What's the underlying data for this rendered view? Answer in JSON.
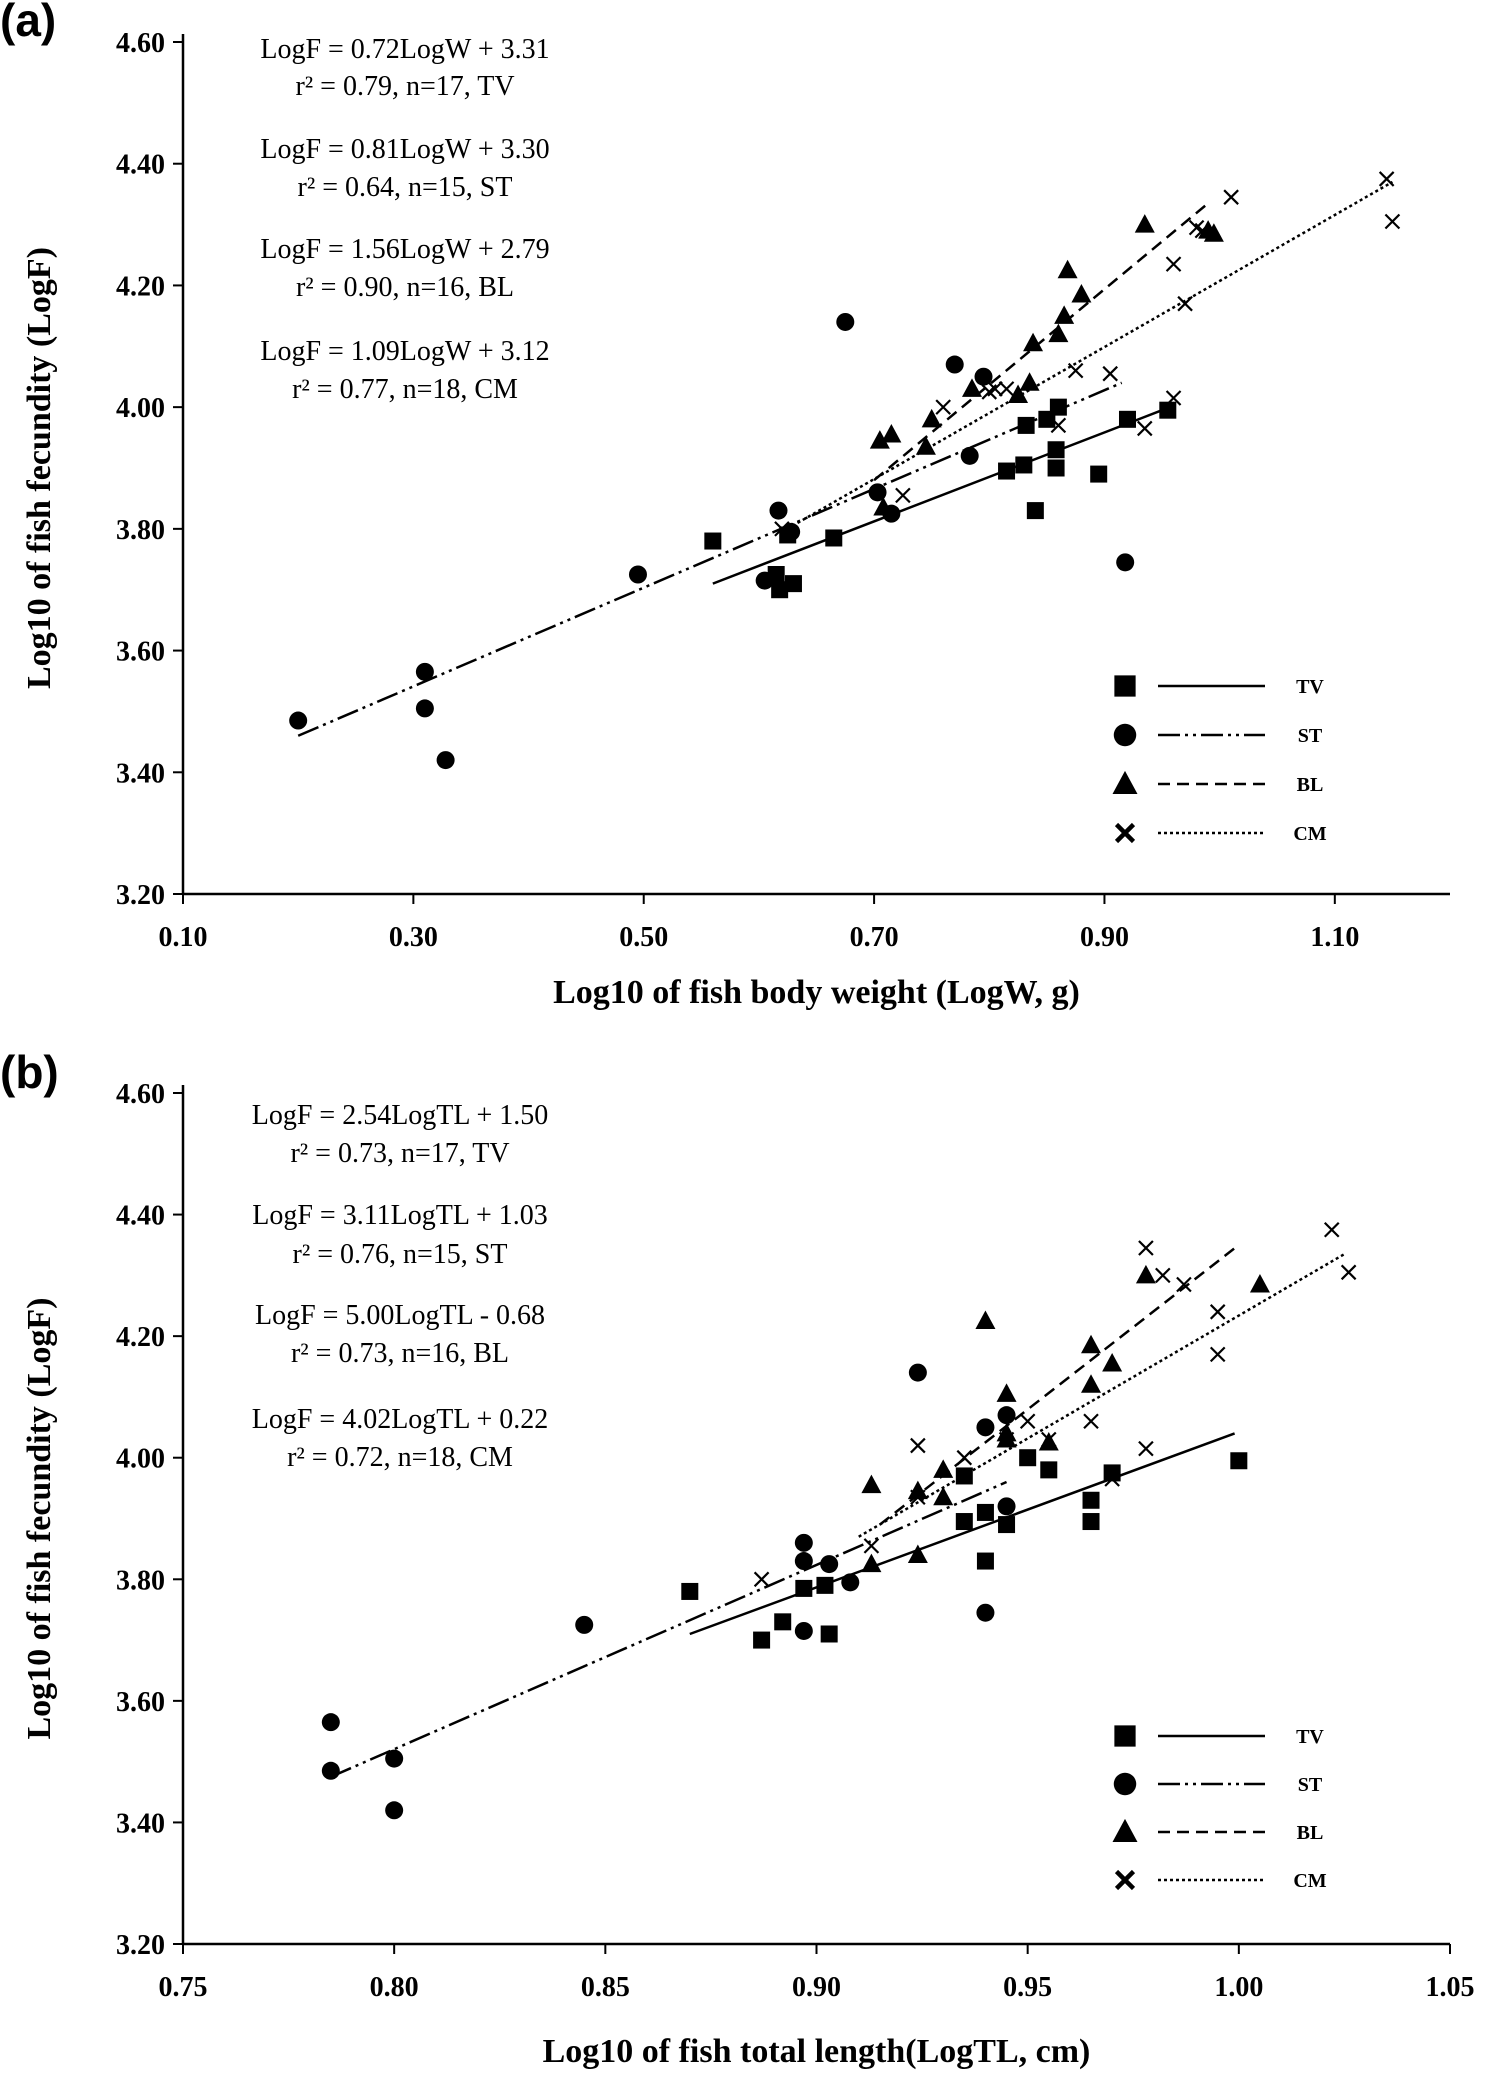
{
  "chart_data": [
    {
      "type": "scatter",
      "panel": "(a)",
      "xlabel": "Log10 of fish body weight (LogW, g)",
      "ylabel": "Log10 of fish fecundity (LogF)",
      "xlim": [
        0.1,
        1.2
      ],
      "ylim": [
        3.2,
        4.6
      ],
      "xticks": [
        "0.10",
        "0.30",
        "0.50",
        "0.70",
        "0.90",
        "1.10"
      ],
      "xtick_values": [
        0.1,
        0.3,
        0.5,
        0.7,
        0.9,
        1.1
      ],
      "yticks": [
        "3.20",
        "3.40",
        "3.60",
        "3.80",
        "4.00",
        "4.20",
        "4.40",
        "4.60"
      ],
      "ytick_values": [
        3.2,
        3.4,
        3.6,
        3.8,
        4.0,
        4.2,
        4.4,
        4.6
      ],
      "grid": false,
      "legend_position": "bottom-right",
      "annotations": [
        {
          "eq": "LogF = 0.72LogW + 3.31",
          "stat": "r² = 0.79, n=17, TV"
        },
        {
          "eq": "LogF = 0.81LogW + 3.30",
          "stat": "r² = 0.64, n=15, ST"
        },
        {
          "eq": "LogF = 1.56LogW + 2.79",
          "stat": "r² = 0.90, n=16, BL"
        },
        {
          "eq": "LogF = 1.09LogW + 3.12",
          "stat": "r² = 0.77, n=18, CM"
        }
      ],
      "series": [
        {
          "name": "TV",
          "marker": "square",
          "line": "solid",
          "fit": [
            [
              0.56,
              3.71
            ],
            [
              0.95,
              3.995
            ]
          ],
          "points": [
            [
              0.56,
              3.78
            ],
            [
              0.615,
              3.725
            ],
            [
              0.618,
              3.7
            ],
            [
              0.625,
              3.79
            ],
            [
              0.63,
              3.71
            ],
            [
              0.665,
              3.785
            ],
            [
              0.815,
              3.895
            ],
            [
              0.83,
              3.905
            ],
            [
              0.832,
              3.97
            ],
            [
              0.84,
              3.83
            ],
            [
              0.85,
              3.98
            ],
            [
              0.858,
              3.93
            ],
            [
              0.858,
              3.9
            ],
            [
              0.86,
              4.0
            ],
            [
              0.895,
              3.89
            ],
            [
              0.92,
              3.98
            ],
            [
              0.955,
              3.995
            ]
          ]
        },
        {
          "name": "ST",
          "marker": "circle",
          "line": "dash-dot-dot",
          "fit": [
            [
              0.2,
              3.46
            ],
            [
              0.915,
              4.04
            ]
          ],
          "points": [
            [
              0.2,
              3.485
            ],
            [
              0.31,
              3.505
            ],
            [
              0.31,
              3.565
            ],
            [
              0.328,
              3.42
            ],
            [
              0.495,
              3.725
            ],
            [
              0.605,
              3.715
            ],
            [
              0.617,
              3.83
            ],
            [
              0.628,
              3.795
            ],
            [
              0.675,
              4.14
            ],
            [
              0.703,
              3.86
            ],
            [
              0.715,
              3.825
            ],
            [
              0.77,
              4.07
            ],
            [
              0.783,
              3.92
            ],
            [
              0.795,
              4.05
            ],
            [
              0.918,
              3.745
            ]
          ]
        },
        {
          "name": "BL",
          "marker": "triangle",
          "line": "dashed",
          "fit": [
            [
              0.7,
              3.88
            ],
            [
              0.99,
              4.335
            ]
          ],
          "points": [
            [
              0.705,
              3.945
            ],
            [
              0.708,
              3.835
            ],
            [
              0.715,
              3.955
            ],
            [
              0.745,
              3.935
            ],
            [
              0.75,
              3.98
            ],
            [
              0.785,
              4.03
            ],
            [
              0.825,
              4.02
            ],
            [
              0.835,
              4.04
            ],
            [
              0.838,
              4.105
            ],
            [
              0.86,
              4.12
            ],
            [
              0.865,
              4.15
            ],
            [
              0.868,
              4.225
            ],
            [
              0.88,
              4.185
            ],
            [
              0.935,
              4.3
            ],
            [
              0.99,
              4.29
            ],
            [
              0.995,
              4.285
            ]
          ]
        },
        {
          "name": "CM",
          "marker": "x",
          "line": "dotted",
          "fit": [
            [
              0.62,
              3.795
            ],
            [
              1.15,
              4.37
            ]
          ],
          "points": [
            [
              0.62,
              3.8
            ],
            [
              0.725,
              3.855
            ],
            [
              0.76,
              4.0
            ],
            [
              0.8,
              4.025
            ],
            [
              0.805,
              4.03
            ],
            [
              0.815,
              4.03
            ],
            [
              0.86,
              3.97
            ],
            [
              0.875,
              4.06
            ],
            [
              0.905,
              4.055
            ],
            [
              0.935,
              3.965
            ],
            [
              0.96,
              4.015
            ],
            [
              0.96,
              4.235
            ],
            [
              0.97,
              4.17
            ],
            [
              0.98,
              4.295
            ],
            [
              0.985,
              4.29
            ],
            [
              1.01,
              4.345
            ],
            [
              1.145,
              4.375
            ],
            [
              1.15,
              4.305
            ]
          ]
        }
      ]
    },
    {
      "type": "scatter",
      "panel": "(b)",
      "xlabel": "Log10 of fish total length(LogTL, cm)",
      "ylabel": "Log10 of fish fecundity (LogF)",
      "xlim": [
        0.75,
        1.05
      ],
      "ylim": [
        3.2,
        4.6
      ],
      "xticks": [
        "0.75",
        "0.80",
        "0.85",
        "0.90",
        "0.95",
        "1.00",
        "1.05"
      ],
      "xtick_values": [
        0.75,
        0.8,
        0.85,
        0.9,
        0.95,
        1.0,
        1.05
      ],
      "yticks": [
        "3.20",
        "3.40",
        "3.60",
        "3.80",
        "4.00",
        "4.20",
        "4.40",
        "4.60"
      ],
      "ytick_values": [
        3.2,
        3.4,
        3.6,
        3.8,
        4.0,
        4.2,
        4.4,
        4.6
      ],
      "grid": false,
      "legend_position": "bottom-right",
      "annotations": [
        {
          "eq": "LogF = 2.54LogTL + 1.50",
          "stat": "r² = 0.73, n=17, TV"
        },
        {
          "eq": "LogF = 3.11LogTL + 1.03",
          "stat": "r² = 0.76, n=15, ST"
        },
        {
          "eq": "LogF = 5.00LogTL - 0.68",
          "stat": "r² = 0.73, n=16, BL"
        },
        {
          "eq": "LogF = 4.02LogTL + 0.22",
          "stat": "r² = 0.72, n=18, CM"
        }
      ],
      "series": [
        {
          "name": "TV",
          "marker": "square",
          "line": "solid",
          "fit": [
            [
              0.87,
              3.71
            ],
            [
              0.999,
              4.04
            ]
          ],
          "points": [
            [
              0.87,
              3.78
            ],
            [
              0.887,
              3.7
            ],
            [
              0.892,
              3.73
            ],
            [
              0.897,
              3.785
            ],
            [
              0.902,
              3.79
            ],
            [
              0.903,
              3.71
            ],
            [
              0.935,
              3.895
            ],
            [
              0.935,
              3.97
            ],
            [
              0.94,
              3.83
            ],
            [
              0.94,
              3.91
            ],
            [
              0.945,
              3.89
            ],
            [
              0.95,
              4.0
            ],
            [
              0.955,
              3.98
            ],
            [
              0.965,
              3.93
            ],
            [
              0.965,
              3.895
            ],
            [
              0.97,
              3.975
            ],
            [
              1.0,
              3.995
            ]
          ]
        },
        {
          "name": "ST",
          "marker": "circle",
          "line": "dash-dot-dot",
          "fit": [
            [
              0.785,
              3.475
            ],
            [
              0.945,
              3.96
            ]
          ],
          "points": [
            [
              0.785,
              3.565
            ],
            [
              0.785,
              3.485
            ],
            [
              0.8,
              3.505
            ],
            [
              0.8,
              3.42
            ],
            [
              0.845,
              3.725
            ],
            [
              0.897,
              3.86
            ],
            [
              0.897,
              3.83
            ],
            [
              0.897,
              3.715
            ],
            [
              0.903,
              3.825
            ],
            [
              0.908,
              3.795
            ],
            [
              0.924,
              4.14
            ],
            [
              0.94,
              4.05
            ],
            [
              0.94,
              3.745
            ],
            [
              0.945,
              4.07
            ],
            [
              0.945,
              3.92
            ]
          ]
        },
        {
          "name": "BL",
          "marker": "triangle",
          "line": "dashed",
          "fit": [
            [
              0.915,
              3.89
            ],
            [
              1.0,
              4.35
            ]
          ],
          "points": [
            [
              0.913,
              3.955
            ],
            [
              0.913,
              3.825
            ],
            [
              0.924,
              3.945
            ],
            [
              0.924,
              3.84
            ],
            [
              0.93,
              3.98
            ],
            [
              0.93,
              3.935
            ],
            [
              0.94,
              4.225
            ],
            [
              0.945,
              4.105
            ],
            [
              0.945,
              4.04
            ],
            [
              0.955,
              4.025
            ],
            [
              0.965,
              4.185
            ],
            [
              0.965,
              4.12
            ],
            [
              0.97,
              4.155
            ],
            [
              0.978,
              4.3
            ],
            [
              1.005,
              4.285
            ],
            [
              0.945,
              4.03
            ]
          ]
        },
        {
          "name": "CM",
          "marker": "x",
          "line": "dotted",
          "fit": [
            [
              0.91,
              3.87
            ],
            [
              1.025,
              4.335
            ]
          ],
          "points": [
            [
              0.887,
              3.8
            ],
            [
              0.913,
              3.855
            ],
            [
              0.924,
              4.02
            ],
            [
              0.924,
              3.935
            ],
            [
              0.935,
              4.0
            ],
            [
              0.945,
              4.03
            ],
            [
              0.95,
              4.06
            ],
            [
              0.955,
              4.03
            ],
            [
              0.965,
              4.06
            ],
            [
              0.97,
              3.965
            ],
            [
              0.978,
              4.345
            ],
            [
              0.978,
              4.015
            ],
            [
              0.982,
              4.3
            ],
            [
              0.987,
              4.285
            ],
            [
              0.995,
              4.24
            ],
            [
              0.995,
              4.17
            ],
            [
              1.022,
              4.375
            ],
            [
              1.026,
              4.305
            ]
          ]
        }
      ]
    }
  ]
}
